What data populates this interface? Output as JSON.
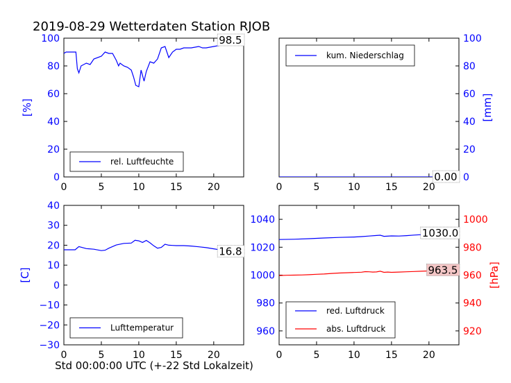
{
  "title": "2019-08-29 Wetterdaten Station RJOB",
  "xlabel": "Std 00:00:00 UTC (+-22 Std Lokalzeit)",
  "colors": {
    "primary": "#0000ff",
    "secondary": "#ff0000",
    "axes": "#000000",
    "box_fill_red": "#f4c6c6"
  },
  "chart_data": [
    {
      "type": "line",
      "ylabel": "[%]",
      "xlim": [
        0,
        24
      ],
      "ylim": [
        0,
        100
      ],
      "xticks": [
        "0",
        "5",
        "10",
        "15",
        "20"
      ],
      "yticks": [
        "0",
        "20",
        "40",
        "60",
        "80",
        "100"
      ],
      "legend": "bottom-left",
      "last_value_label": "98.5",
      "series": [
        {
          "name": "rel. Luftfeuchte",
          "color": "#0000ff",
          "x": [
            0,
            0.3,
            1,
            1.6,
            1.8,
            2.0,
            2.3,
            3,
            3.5,
            4,
            5,
            5.5,
            6,
            6.5,
            7,
            7.3,
            7.5,
            8,
            8.5,
            9,
            9.3,
            9.6,
            10,
            10.3,
            10.7,
            11,
            11.5,
            12,
            12.5,
            13,
            13.5,
            14,
            14.5,
            15,
            15.5,
            16,
            17,
            18,
            18.5,
            19,
            20,
            21,
            22,
            22.5,
            23,
            24
          ],
          "y": [
            89,
            90,
            90,
            90,
            78,
            75,
            80,
            82,
            81,
            85,
            87,
            90,
            89,
            89,
            84,
            80,
            82,
            80,
            79,
            77,
            72,
            66,
            65,
            77,
            69,
            76,
            83,
            82,
            85,
            93,
            94,
            86,
            90,
            92,
            92,
            93,
            93,
            94,
            93,
            93,
            94,
            95,
            95,
            97,
            97,
            98.5
          ]
        }
      ]
    },
    {
      "type": "line",
      "ylabel": "[mm]",
      "xlim": [
        0,
        24
      ],
      "ylim": [
        0,
        100
      ],
      "xticks": [
        "0",
        "5",
        "10",
        "15",
        "20"
      ],
      "yticks": [
        "0",
        "20",
        "40",
        "60",
        "80",
        "100"
      ],
      "legend": "top-left",
      "last_value_label": "0.00",
      "series": [
        {
          "name": "kum. Niederschlag",
          "color": "#0000ff",
          "x": [
            0,
            24
          ],
          "y": [
            0,
            0
          ]
        }
      ]
    },
    {
      "type": "line",
      "ylabel": "[C]",
      "xlim": [
        0,
        24
      ],
      "ylim": [
        -30,
        40
      ],
      "xticks": [
        "0",
        "5",
        "10",
        "15",
        "20"
      ],
      "yticks": [
        "−30",
        "−20",
        "−10",
        "0",
        "10",
        "20",
        "30",
        "40"
      ],
      "legend": "bottom-left",
      "last_value_label": "16.8",
      "series": [
        {
          "name": "Lufttemperatur",
          "color": "#0000ff",
          "x": [
            0,
            1.5,
            2,
            3,
            4,
            5,
            5.5,
            6,
            7,
            8,
            9,
            9.5,
            10,
            10.5,
            11,
            11.5,
            12,
            12.5,
            13,
            13.5,
            14,
            14.5,
            15,
            16,
            17,
            18,
            19,
            20,
            21,
            22,
            24
          ],
          "y": [
            17.7,
            17.7,
            19.3,
            18.3,
            18,
            17.3,
            17.5,
            18.5,
            20.1,
            20.9,
            21.1,
            22.5,
            22.2,
            21.4,
            22.4,
            21.2,
            19.7,
            18.5,
            18.9,
            20.5,
            20,
            19.9,
            19.8,
            19.8,
            19.6,
            19.2,
            18.8,
            18.2,
            17.6,
            17.1,
            16.8
          ]
        }
      ]
    },
    {
      "type": "line",
      "ylabel": "[hPa]",
      "xlim": [
        0,
        24
      ],
      "ylim": [
        950,
        1050
      ],
      "ylim_right": [
        910,
        1010
      ],
      "xticks": [
        "0",
        "5",
        "10",
        "15",
        "20"
      ],
      "yticks": [
        "960",
        "980",
        "1000",
        "1020",
        "1040"
      ],
      "yticks_right": [
        "920",
        "940",
        "960",
        "980",
        "1000"
      ],
      "legend": "bottom-left",
      "series": [
        {
          "name": "red. Luftdruck",
          "color": "#0000ff",
          "axis": "left",
          "last_value_label": "1030.0",
          "x": [
            0,
            2,
            4,
            6,
            8,
            10,
            11,
            12,
            13,
            13.5,
            14,
            15,
            16,
            17,
            18,
            19,
            20,
            22,
            24
          ],
          "y": [
            1025.5,
            1025.7,
            1026.1,
            1026.6,
            1027,
            1027.3,
            1027.6,
            1028,
            1028.4,
            1028.6,
            1027.8,
            1028.1,
            1028,
            1028.3,
            1028.7,
            1029,
            1029.3,
            1029.6,
            1030.0
          ]
        },
        {
          "name": "abs. Luftdruck",
          "color": "#ff0000",
          "axis": "right",
          "last_value_label": "963.5",
          "x": [
            0,
            1,
            2,
            3,
            4,
            5,
            6,
            7,
            8,
            9,
            10,
            11,
            11.5,
            12,
            12.5,
            13,
            13.5,
            14,
            14.5,
            15,
            16,
            17,
            18,
            19,
            20,
            21,
            22,
            23,
            24
          ],
          "y": [
            959.7,
            959.9,
            960,
            960.1,
            960.3,
            960.6,
            960.8,
            961.2,
            961.5,
            961.7,
            961.9,
            962.1,
            962.5,
            962.4,
            962.2,
            962.3,
            962.8,
            962.0,
            962.2,
            962.0,
            962.2,
            962.4,
            962.6,
            962.8,
            963.0,
            963.1,
            963.2,
            963.4,
            963.5
          ]
        }
      ]
    }
  ]
}
